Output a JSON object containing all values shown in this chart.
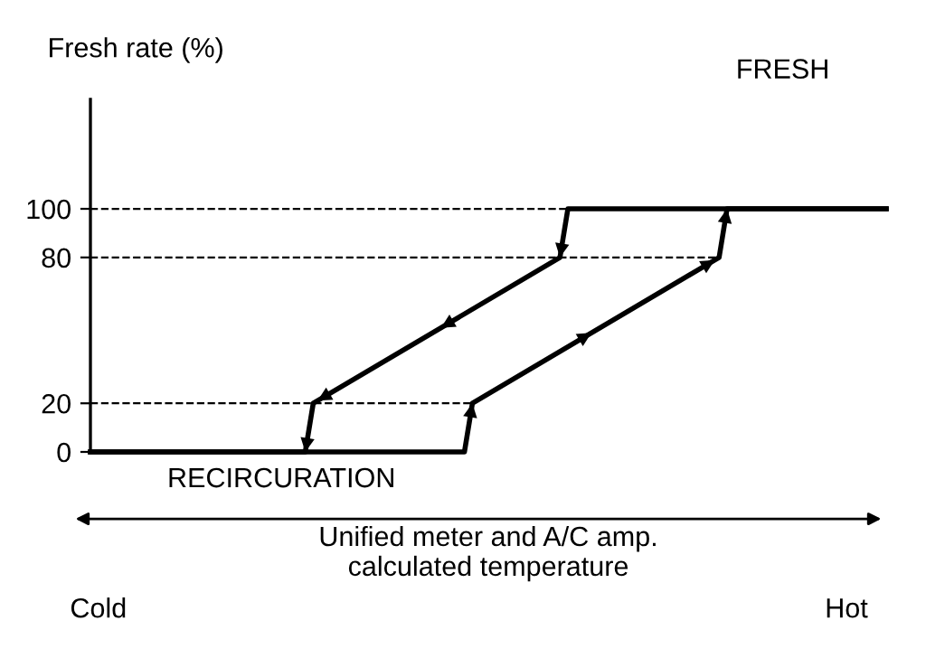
{
  "chart_data": {
    "type": "line",
    "ylabel": "Fresh rate (%)",
    "xlabel": "Unified meter and A/C amp.\ncalculated temperature",
    "categories": [
      null,
      "Cold",
      null,
      null,
      null,
      null,
      null,
      null,
      null,
      null,
      null,
      null,
      null,
      null,
      null,
      null,
      null,
      null,
      null,
      null,
      null,
      null,
      null,
      null,
      null,
      null,
      null,
      null,
      null,
      null,
      null,
      null,
      null,
      null,
      null,
      null,
      null,
      null,
      null,
      null,
      null,
      null,
      null,
      null,
      null,
      null,
      null,
      null,
      null,
      null,
      null,
      null,
      null,
      null,
      null,
      null,
      null,
      null,
      null,
      null,
      null,
      null,
      null,
      null,
      null,
      null,
      null,
      null,
      null,
      null,
      null,
      null,
      null,
      null,
      null,
      null,
      null,
      null,
      null,
      null,
      null,
      null,
      null,
      null,
      null,
      null,
      null,
      null,
      null,
      null,
      null,
      null,
      null,
      null,
      null,
      "Hot",
      null,
      null,
      null,
      null,
      null
    ],
    "series": [
      {
        "color": "#000000",
        "values": [
          0,
          null,
          null,
          null,
          null,
          null,
          null,
          null,
          null,
          null,
          null,
          null,
          null,
          null,
          null,
          null,
          null,
          null,
          null,
          null,
          null,
          null,
          null,
          null,
          null,
          null,
          null,
          null,
          null,
          null,
          null,
          null,
          null,
          null,
          null,
          null,
          null,
          null,
          null,
          null,
          null,
          null,
          null,
          null,
          null,
          null,
          null,
          0,
          20,
          null,
          null,
          null,
          null,
          null,
          null,
          null,
          null,
          null,
          null,
          null,
          null,
          null,
          null,
          null,
          null,
          null,
          null,
          null,
          null,
          null,
          null,
          null,
          null,
          null,
          null,
          null,
          null,
          null,
          null,
          80,
          100,
          null,
          null,
          null,
          null,
          null,
          null,
          null,
          null,
          null,
          null,
          null,
          null,
          null,
          null,
          null,
          null,
          null,
          null,
          null,
          100
        ]
      },
      {
        "color": "#000000",
        "values": [
          0,
          null,
          null,
          null,
          null,
          null,
          null,
          null,
          null,
          null,
          null,
          null,
          null,
          null,
          null,
          null,
          null,
          null,
          null,
          null,
          null,
          null,
          null,
          null,
          null,
          null,
          null,
          0,
          20,
          null,
          null,
          null,
          null,
          null,
          null,
          null,
          null,
          null,
          null,
          null,
          null,
          null,
          null,
          null,
          null,
          null,
          null,
          null,
          null,
          null,
          null,
          null,
          null,
          null,
          null,
          null,
          null,
          null,
          null,
          80,
          100,
          null,
          null,
          null,
          null,
          null,
          null,
          null,
          null,
          null,
          null,
          null,
          null,
          null,
          null,
          null,
          null,
          null,
          null,
          null,
          null,
          null,
          null,
          null,
          null,
          null,
          null,
          null,
          null,
          null,
          null,
          null,
          null,
          null,
          null,
          null,
          null,
          null,
          null,
          null,
          100
        ]
      }
    ],
    "ylim": [
      0,
      145
    ],
    "yticks": [
      0,
      20,
      80,
      100
    ],
    "ref_lines": [
      {
        "axis": "y",
        "value": 20,
        "line_style": "dashed",
        "color": "#000000"
      },
      {
        "axis": "y",
        "value": 80,
        "line_style": "dashed",
        "color": "#000000"
      },
      {
        "axis": "y",
        "value": 100,
        "line_style": "dashed",
        "color": "#000000"
      }
    ],
    "annotations": [
      "FRESH",
      "RECIRCURATION"
    ],
    "grid": false,
    "legend": false,
    "marker": "none",
    "line_style": "solid"
  }
}
